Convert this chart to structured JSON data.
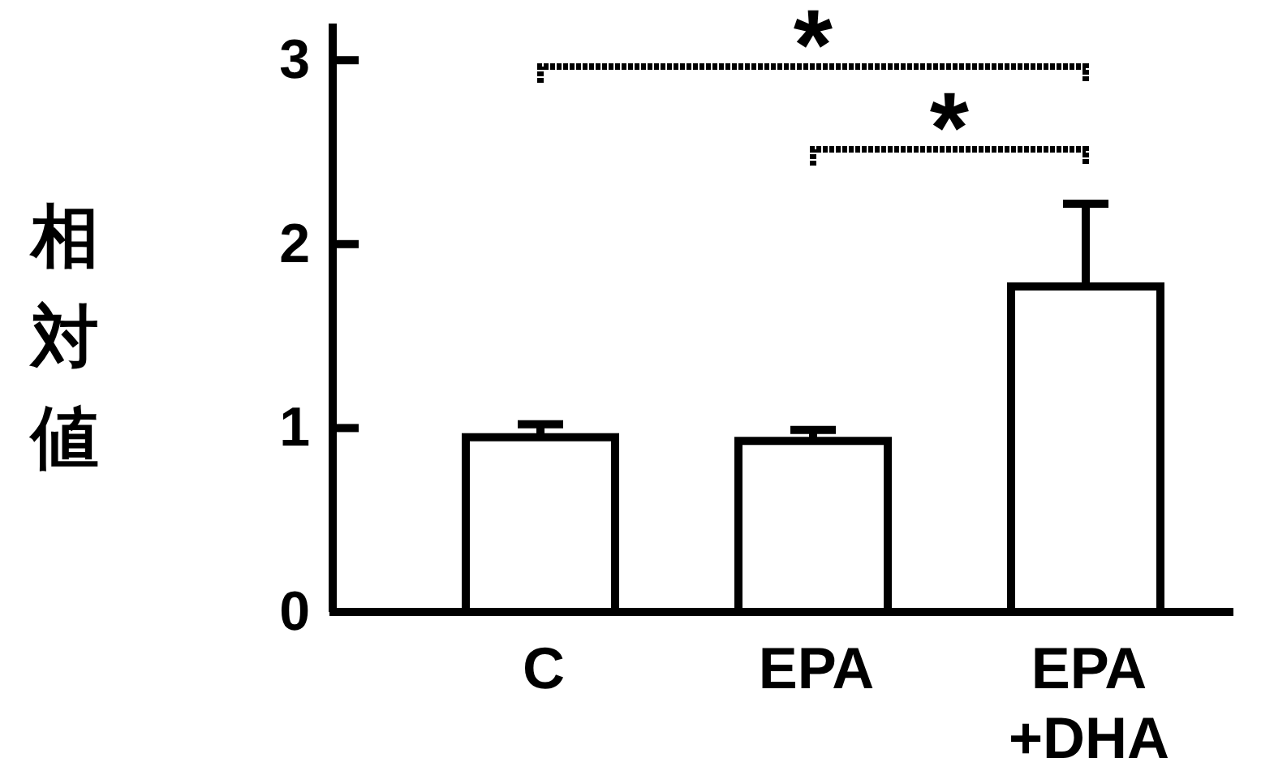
{
  "chart_data": {
    "type": "bar",
    "ylabel": "相対値",
    "categories": [
      "C",
      "EPA",
      "EPA\n+DHA"
    ],
    "values": [
      0.95,
      0.93,
      1.77
    ],
    "errors": [
      [
        0.95,
        1.02
      ],
      [
        0.93,
        0.99
      ],
      [
        1.77,
        2.22
      ]
    ],
    "color": "#ffffff",
    "ylim": [
      0,
      3.2
    ],
    "yticks": [
      0,
      1,
      2,
      3
    ],
    "annotations": [
      "*",
      "*"
    ]
  }
}
